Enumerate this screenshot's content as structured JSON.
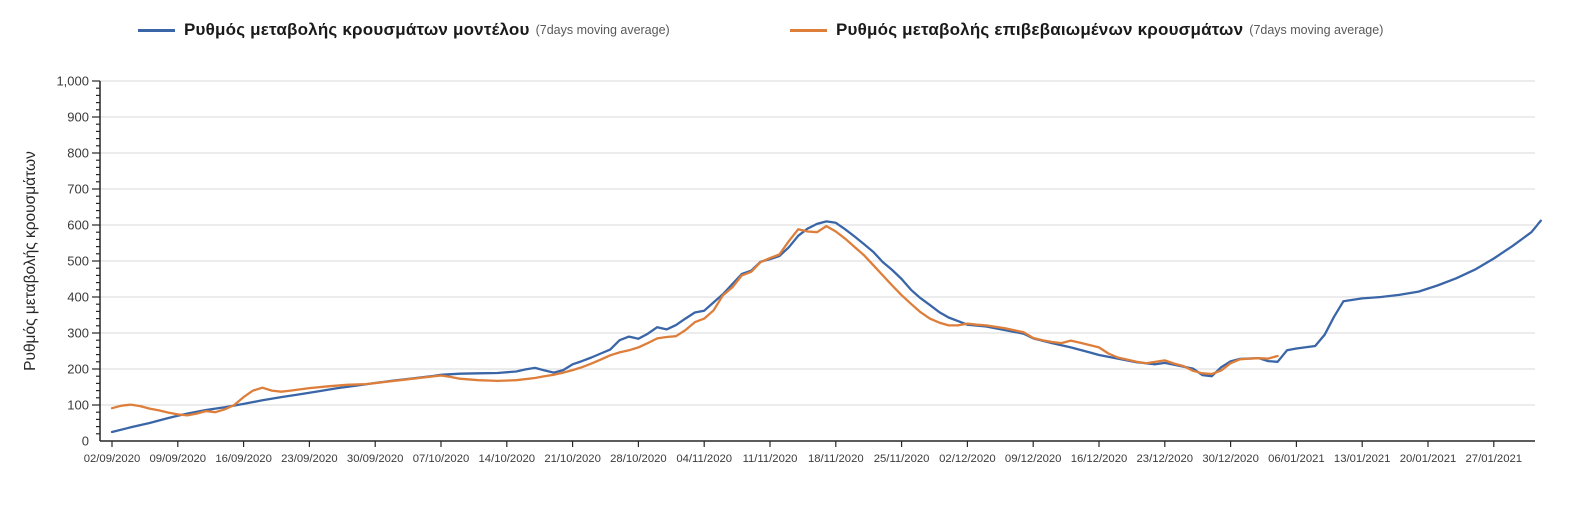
{
  "legend": {
    "series1": {
      "label": "Ρυθμός μεταβολής κρουσμάτων μοντέλου",
      "suffix": "(7days moving average)",
      "color": "#3a66a8"
    },
    "series2": {
      "label": "Ρυθμός μεταβολής επιβεβαιωμένων κρουσμάτων",
      "suffix": "(7days moving average)",
      "color": "#dd7e3b"
    }
  },
  "chart_data": {
    "type": "line",
    "title": "",
    "xlabel": "",
    "ylabel": "Ρυθμός μεταβολής κρουσμάτων",
    "ylim": [
      0,
      1000
    ],
    "y_tick_step": 100,
    "y_minor_tick_step": 20,
    "grid": true,
    "legend_position": "top",
    "y_tick_labels": [
      "0",
      "100",
      "200",
      "300",
      "400",
      "500",
      "600",
      "700",
      "800",
      "900",
      "1,000"
    ],
    "x_tick_labels": [
      "02/09/2020",
      "09/09/2020",
      "16/09/2020",
      "23/09/2020",
      "30/09/2020",
      "07/10/2020",
      "14/10/2020",
      "21/10/2020",
      "28/10/2020",
      "04/11/2020",
      "11/11/2020",
      "18/11/2020",
      "25/11/2020",
      "02/12/2020",
      "09/12/2020",
      "16/12/2020",
      "23/12/2020",
      "30/12/2020",
      "06/01/2021",
      "13/01/2021",
      "20/01/2021",
      "27/01/2021"
    ],
    "x_days_per_tick": 7,
    "series": [
      {
        "name": "Ρυθμός μεταβολής κρουσμάτων μοντέλου (7days moving average)",
        "color": "#3a66a8",
        "points": [
          [
            0,
            25
          ],
          [
            2,
            38
          ],
          [
            4,
            50
          ],
          [
            6,
            64
          ],
          [
            7,
            70
          ],
          [
            8,
            76
          ],
          [
            10,
            86
          ],
          [
            12,
            94
          ],
          [
            14,
            103
          ],
          [
            16,
            113
          ],
          [
            18,
            122
          ],
          [
            20,
            130
          ],
          [
            22,
            138
          ],
          [
            24,
            147
          ],
          [
            26,
            154
          ],
          [
            28,
            161
          ],
          [
            30,
            168
          ],
          [
            32,
            174
          ],
          [
            34,
            180
          ],
          [
            35,
            184
          ],
          [
            37,
            187
          ],
          [
            39,
            188
          ],
          [
            41,
            189
          ],
          [
            43,
            193
          ],
          [
            44,
            199
          ],
          [
            45,
            203
          ],
          [
            46,
            196
          ],
          [
            47,
            190
          ],
          [
            48,
            197
          ],
          [
            49,
            213
          ],
          [
            50,
            222
          ],
          [
            51,
            232
          ],
          [
            52,
            243
          ],
          [
            53,
            254
          ],
          [
            54,
            280
          ],
          [
            55,
            290
          ],
          [
            56,
            284
          ],
          [
            57,
            298
          ],
          [
            58,
            316
          ],
          [
            59,
            310
          ],
          [
            60,
            322
          ],
          [
            61,
            340
          ],
          [
            62,
            357
          ],
          [
            63,
            362
          ],
          [
            64,
            385
          ],
          [
            65,
            408
          ],
          [
            66,
            436
          ],
          [
            67,
            464
          ],
          [
            68,
            473
          ],
          [
            69,
            498
          ],
          [
            70,
            505
          ],
          [
            71,
            514
          ],
          [
            72,
            538
          ],
          [
            73,
            570
          ],
          [
            74,
            590
          ],
          [
            75,
            603
          ],
          [
            76,
            610
          ],
          [
            77,
            606
          ],
          [
            78,
            588
          ],
          [
            79,
            568
          ],
          [
            80,
            547
          ],
          [
            81,
            525
          ],
          [
            82,
            497
          ],
          [
            83,
            475
          ],
          [
            84,
            450
          ],
          [
            85,
            420
          ],
          [
            86,
            397
          ],
          [
            87,
            378
          ],
          [
            88,
            358
          ],
          [
            89,
            343
          ],
          [
            90,
            333
          ],
          [
            91,
            323
          ],
          [
            93,
            318
          ],
          [
            95,
            308
          ],
          [
            97,
            298
          ],
          [
            98,
            285
          ],
          [
            100,
            272
          ],
          [
            102,
            260
          ],
          [
            104,
            246
          ],
          [
            105,
            239
          ],
          [
            107,
            229
          ],
          [
            109,
            219
          ],
          [
            111,
            213
          ],
          [
            112,
            217
          ],
          [
            113,
            212
          ],
          [
            115,
            201
          ],
          [
            116,
            183
          ],
          [
            117,
            180
          ],
          [
            118,
            205
          ],
          [
            119,
            221
          ],
          [
            120,
            228
          ],
          [
            122,
            230
          ],
          [
            123,
            222
          ],
          [
            124,
            220
          ],
          [
            125,
            252
          ],
          [
            126,
            257
          ],
          [
            128,
            264
          ],
          [
            129,
            295
          ],
          [
            130,
            345
          ],
          [
            131,
            388
          ],
          [
            133,
            396
          ],
          [
            135,
            400
          ],
          [
            137,
            406
          ],
          [
            139,
            415
          ],
          [
            141,
            432
          ],
          [
            143,
            452
          ],
          [
            145,
            476
          ],
          [
            147,
            507
          ],
          [
            149,
            542
          ],
          [
            151,
            580
          ],
          [
            152,
            612
          ]
        ]
      },
      {
        "name": "Ρυθμός μεταβολής επιβεβαιωμένων κρουσμάτων (7days moving average)",
        "color": "#dd7e3b",
        "points": [
          [
            0,
            91
          ],
          [
            1,
            98
          ],
          [
            2,
            101
          ],
          [
            3,
            97
          ],
          [
            4,
            90
          ],
          [
            5,
            85
          ],
          [
            6,
            79
          ],
          [
            7,
            74
          ],
          [
            8,
            71
          ],
          [
            9,
            76
          ],
          [
            10,
            83
          ],
          [
            11,
            80
          ],
          [
            12,
            88
          ],
          [
            13,
            100
          ],
          [
            14,
            122
          ],
          [
            15,
            140
          ],
          [
            16,
            148
          ],
          [
            17,
            140
          ],
          [
            18,
            137
          ],
          [
            19,
            140
          ],
          [
            21,
            147
          ],
          [
            23,
            152
          ],
          [
            25,
            156
          ],
          [
            27,
            158
          ],
          [
            29,
            164
          ],
          [
            31,
            170
          ],
          [
            33,
            176
          ],
          [
            35,
            182
          ],
          [
            36,
            178
          ],
          [
            37,
            173
          ],
          [
            39,
            169
          ],
          [
            41,
            167
          ],
          [
            43,
            169
          ],
          [
            45,
            175
          ],
          [
            46,
            180
          ],
          [
            47,
            184
          ],
          [
            48,
            190
          ],
          [
            49,
            197
          ],
          [
            50,
            205
          ],
          [
            51,
            215
          ],
          [
            52,
            226
          ],
          [
            53,
            238
          ],
          [
            54,
            246
          ],
          [
            55,
            252
          ],
          [
            56,
            260
          ],
          [
            57,
            272
          ],
          [
            58,
            285
          ],
          [
            59,
            289
          ],
          [
            60,
            291
          ],
          [
            61,
            308
          ],
          [
            62,
            330
          ],
          [
            63,
            340
          ],
          [
            64,
            363
          ],
          [
            65,
            405
          ],
          [
            66,
            427
          ],
          [
            67,
            460
          ],
          [
            68,
            470
          ],
          [
            69,
            497
          ],
          [
            70,
            508
          ],
          [
            71,
            518
          ],
          [
            72,
            555
          ],
          [
            73,
            588
          ],
          [
            74,
            582
          ],
          [
            75,
            580
          ],
          [
            76,
            597
          ],
          [
            77,
            582
          ],
          [
            78,
            562
          ],
          [
            79,
            539
          ],
          [
            80,
            516
          ],
          [
            81,
            488
          ],
          [
            82,
            460
          ],
          [
            83,
            432
          ],
          [
            84,
            405
          ],
          [
            85,
            381
          ],
          [
            86,
            358
          ],
          [
            87,
            340
          ],
          [
            88,
            329
          ],
          [
            89,
            321
          ],
          [
            90,
            321
          ],
          [
            91,
            326
          ],
          [
            92,
            323
          ],
          [
            93,
            321
          ],
          [
            95,
            313
          ],
          [
            97,
            302
          ],
          [
            98,
            286
          ],
          [
            99,
            280
          ],
          [
            100,
            275
          ],
          [
            101,
            272
          ],
          [
            102,
            279
          ],
          [
            103,
            273
          ],
          [
            105,
            260
          ],
          [
            106,
            243
          ],
          [
            107,
            232
          ],
          [
            109,
            220
          ],
          [
            110,
            216
          ],
          [
            112,
            224
          ],
          [
            113,
            215
          ],
          [
            114,
            208
          ],
          [
            115,
            195
          ],
          [
            116,
            188
          ],
          [
            117,
            186
          ],
          [
            118,
            196
          ],
          [
            119,
            216
          ],
          [
            120,
            227
          ],
          [
            121,
            229
          ],
          [
            122,
            230
          ],
          [
            123,
            229
          ],
          [
            124,
            236
          ]
        ]
      }
    ],
    "colors": {
      "gridline": "#d9d9d9",
      "axis": "#262626",
      "tick_text": "#3b3b3b"
    }
  }
}
